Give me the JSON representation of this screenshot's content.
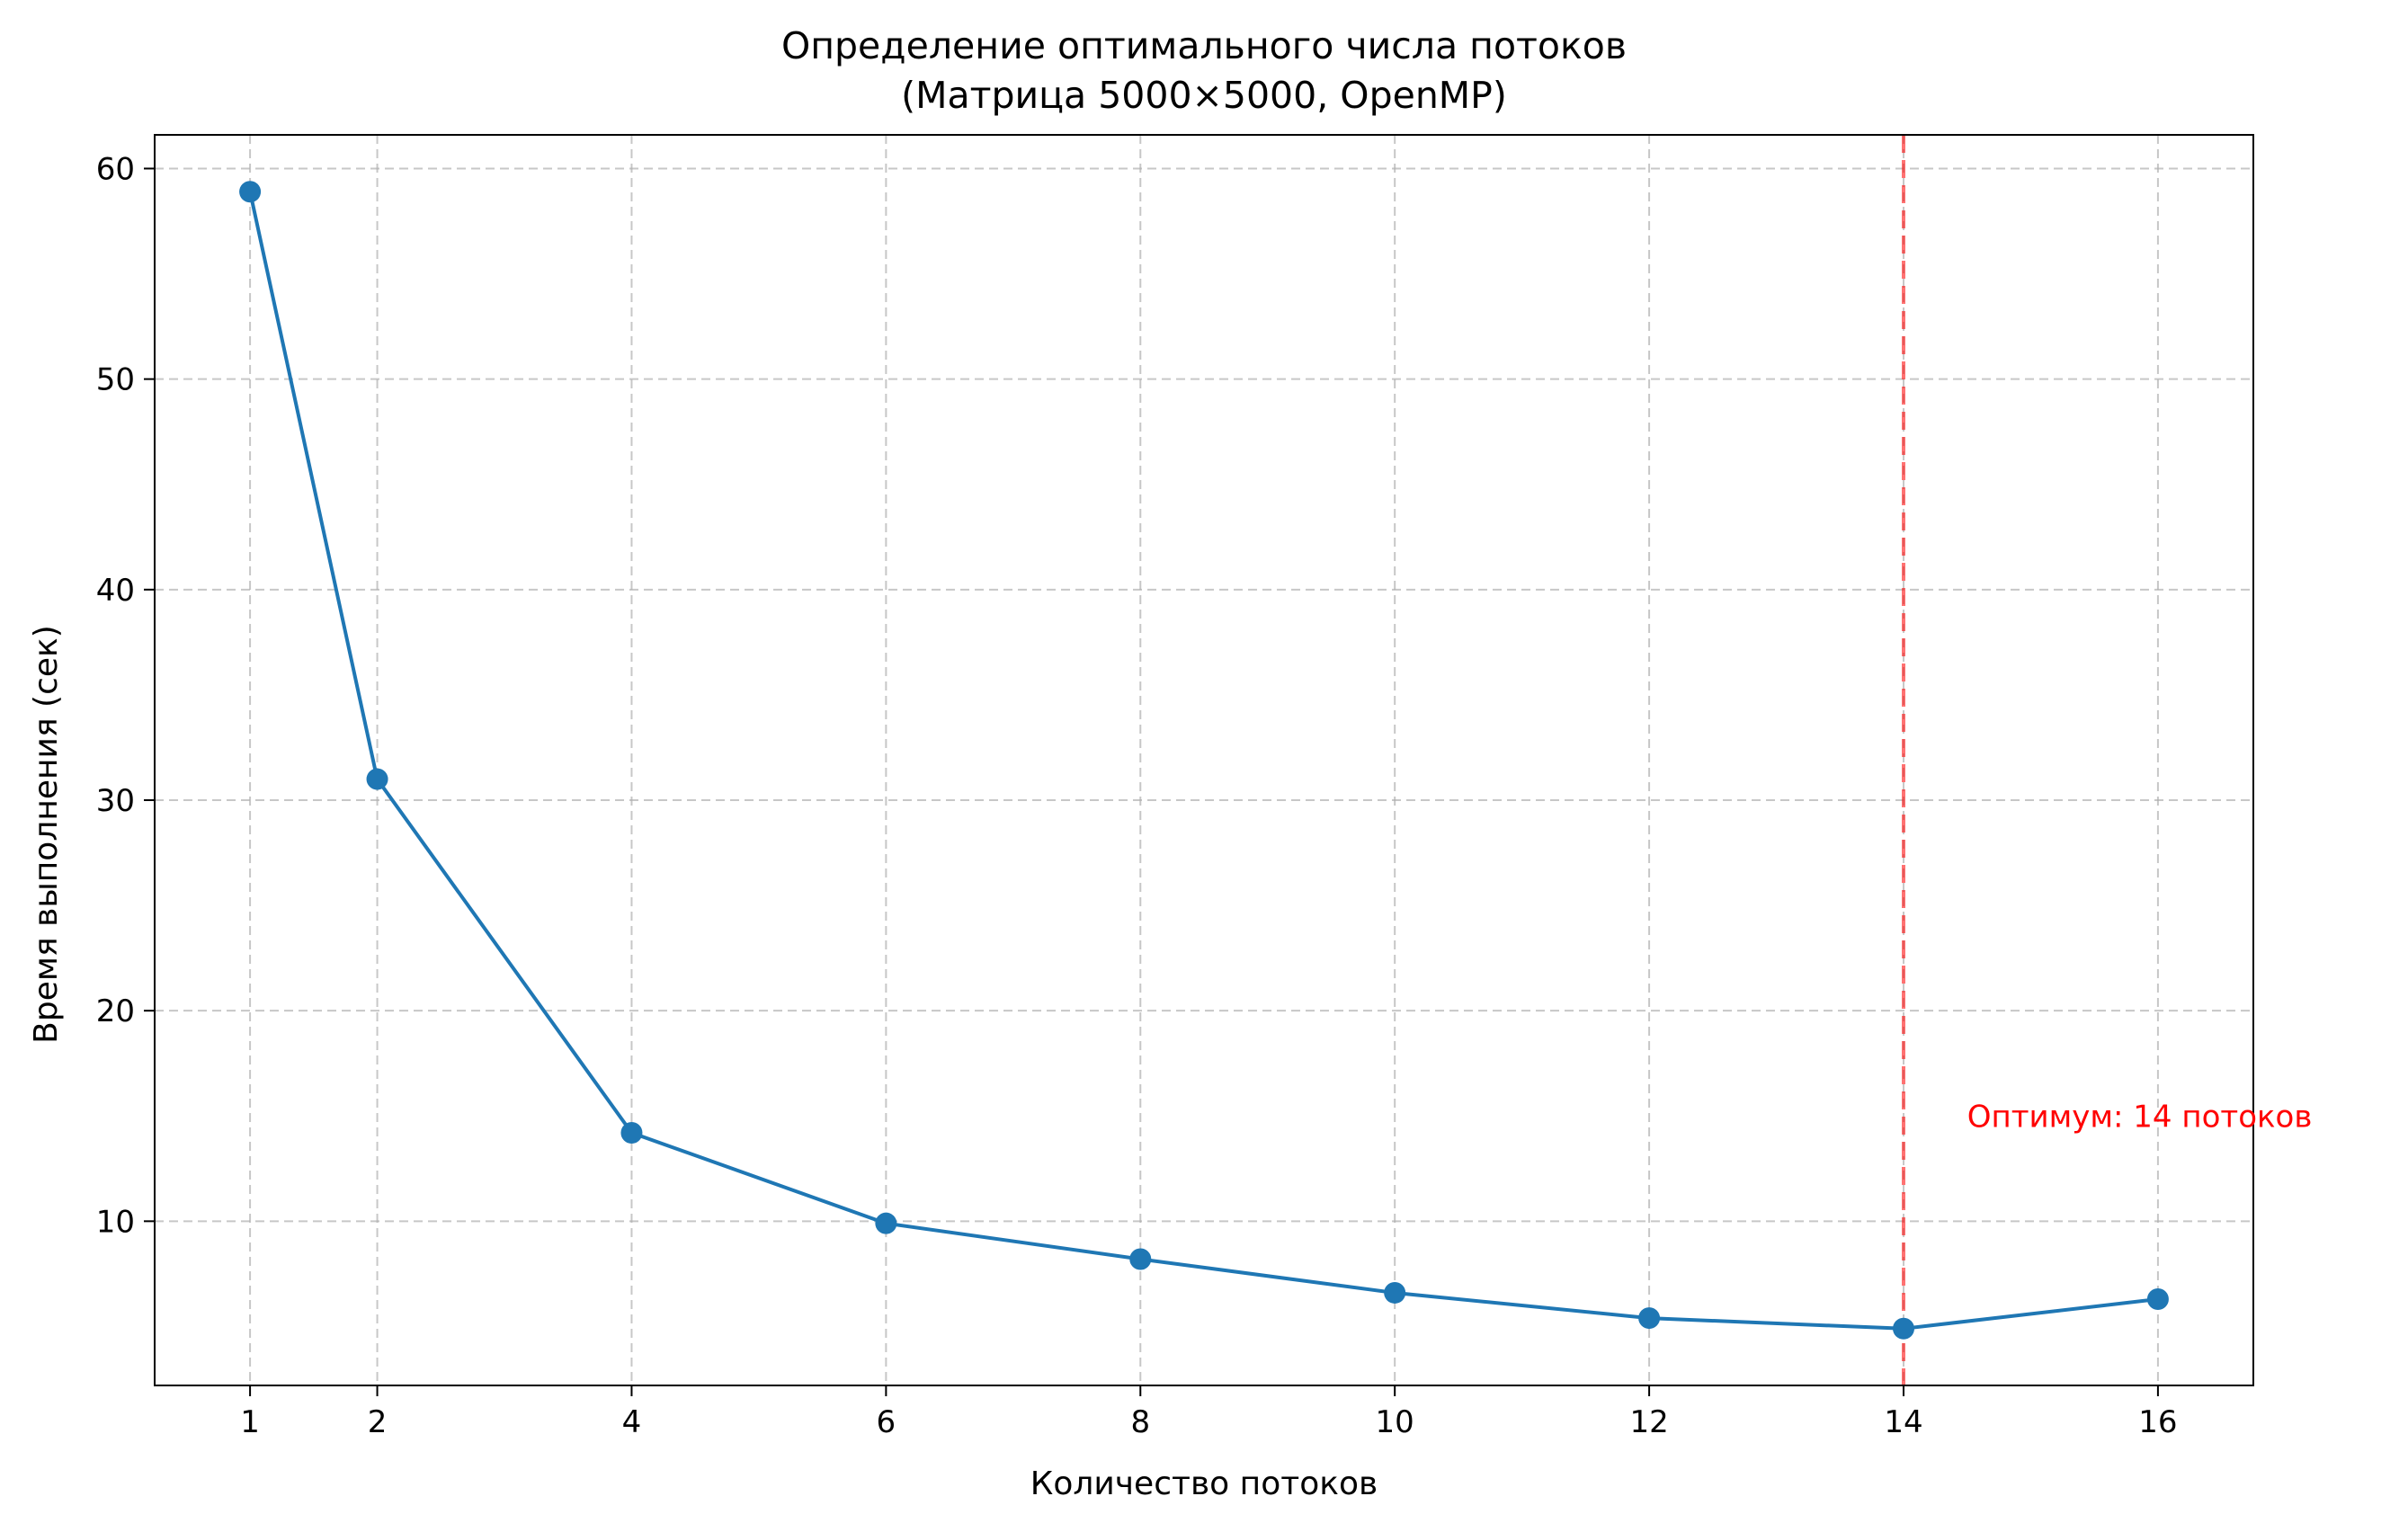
{
  "chart_data": {
    "type": "line",
    "title": "Определение оптимального числа потоков",
    "subtitle": "(Матрица 5000×5000, OpenMP)",
    "xlabel": "Количество потоков",
    "ylabel": "Время выполнения (сек)",
    "x": [
      1,
      2,
      4,
      6,
      8,
      10,
      12,
      14,
      16
    ],
    "series": [
      {
        "values": [
          58.9,
          31.0,
          14.2,
          9.9,
          8.2,
          6.6,
          5.4,
          4.9,
          6.3
        ],
        "color": "#1f77b4"
      }
    ],
    "x_ticks": [
      1,
      2,
      4,
      6,
      8,
      10,
      12,
      14,
      16
    ],
    "y_ticks": [
      10,
      20,
      30,
      40,
      50,
      60
    ],
    "xlim": [
      0.25,
      16.75
    ],
    "ylim": [
      2.2,
      61.6
    ],
    "grid": true,
    "optimum": {
      "x": 14,
      "label": "Оптимум: 14 потоков",
      "label_y": 15,
      "color": "#ff0000"
    }
  }
}
